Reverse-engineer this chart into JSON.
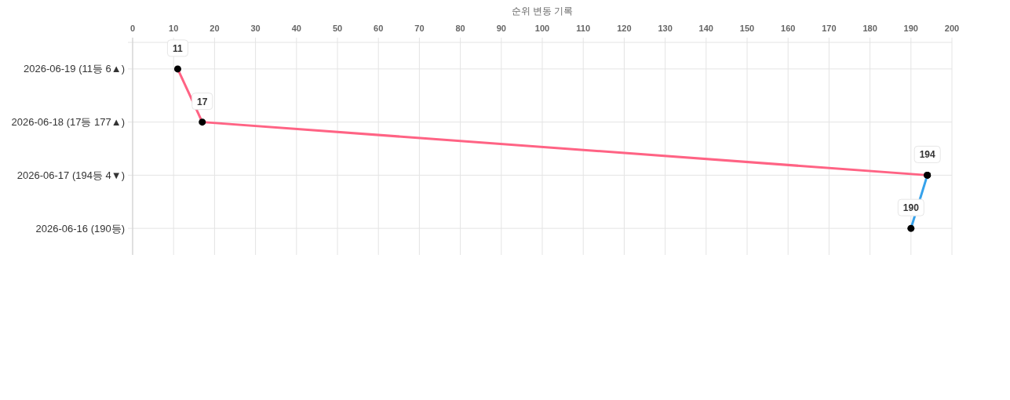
{
  "chart_data": {
    "type": "line",
    "orientation": "horizontal",
    "xlabel": "순위 변동 기록",
    "categories": [
      "2026-06-19 (11등 6▲)",
      "2026-06-18 (17등 177▲)",
      "2026-06-17 (194등 4▼)",
      "2026-06-16 (190등)"
    ],
    "series": [
      {
        "color": "#ff6384",
        "values": [
          11,
          17,
          194,
          null
        ]
      },
      {
        "color": "#36a2eb",
        "values": [
          null,
          null,
          194,
          190
        ],
        "value_labels": [
          null,
          null,
          null,
          "190"
        ]
      }
    ],
    "xlim": [
      0,
      200
    ],
    "xticks": [
      0,
      10,
      20,
      30,
      40,
      50,
      60,
      70,
      80,
      90,
      100,
      110,
      120,
      130,
      140,
      150,
      160,
      170,
      180,
      190,
      200
    ],
    "grid": true,
    "marker": "circle",
    "data_labels": true
  }
}
